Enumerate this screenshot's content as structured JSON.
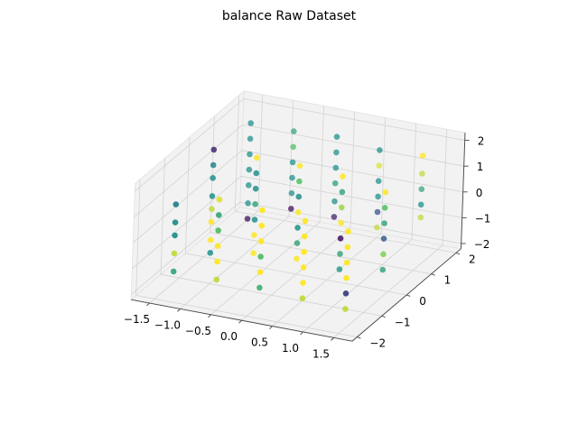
{
  "chart_data": {
    "type": "scatter",
    "title": "balance Raw Dataset",
    "xlabel": "",
    "ylabel": "",
    "zlabel": "",
    "xlim": [
      -1.8,
      1.8
    ],
    "ylim": [
      -2.2,
      2.2
    ],
    "zlim": [
      -2.2,
      2.3
    ],
    "x_ticks": [
      -1.5,
      -1.0,
      -0.5,
      0.0,
      0.5,
      1.0,
      1.5
    ],
    "x_tick_labels": [
      "−1.5",
      "−1.0",
      "−0.5",
      "0.0",
      "0.5",
      "1.0",
      "1.5"
    ],
    "y_ticks": [
      -2,
      -1,
      0,
      1,
      2
    ],
    "y_tick_labels": [
      "−2",
      "−1",
      "0",
      "1",
      "2"
    ],
    "z_ticks": [
      -2,
      -1,
      0,
      1,
      2
    ],
    "z_tick_labels": [
      "−2",
      "−1",
      "0",
      "1",
      "2"
    ],
    "grid": true,
    "colormap": [
      "#440154",
      "#3b528b",
      "#21918c",
      "#5ec962",
      "#fde725"
    ],
    "pane_color": "#f2f2f2",
    "points": [
      {
        "x": -1.4,
        "y": 0.0,
        "z": 2.0,
        "c": 0.12
      },
      {
        "x": -1.4,
        "y": 0.0,
        "z": 1.4,
        "c": 0.45
      },
      {
        "x": -1.4,
        "y": 0.0,
        "z": 0.9,
        "c": 0.5
      },
      {
        "x": -1.4,
        "y": 0.0,
        "z": 0.2,
        "c": 0.5
      },
      {
        "x": -1.4,
        "y": 0.0,
        "z": -0.3,
        "c": 0.9
      },
      {
        "x": -1.4,
        "y": 0.0,
        "z": -0.8,
        "c": 1.0
      },
      {
        "x": -1.4,
        "y": 0.0,
        "z": -1.5,
        "c": 1.0
      },
      {
        "x": -1.4,
        "y": 0.0,
        "z": -2.0,
        "c": 0.5
      },
      {
        "x": -1.4,
        "y": 1.5,
        "z": 1.8,
        "c": 0.5
      },
      {
        "x": -1.4,
        "y": 1.5,
        "z": 1.2,
        "c": 0.5
      },
      {
        "x": -1.4,
        "y": 1.5,
        "z": 0.6,
        "c": 0.5
      },
      {
        "x": -1.4,
        "y": 1.5,
        "z": 0.0,
        "c": 0.5
      },
      {
        "x": -1.4,
        "y": 1.5,
        "z": -0.6,
        "c": 0.5
      },
      {
        "x": -1.4,
        "y": 1.5,
        "z": -1.3,
        "c": 0.5
      },
      {
        "x": -1.4,
        "y": 1.5,
        "z": -1.9,
        "c": 0.05
      },
      {
        "x": -1.4,
        "y": -1.5,
        "z": 1.1,
        "c": 0.45
      },
      {
        "x": -1.4,
        "y": -1.5,
        "z": 0.4,
        "c": 0.5
      },
      {
        "x": -1.4,
        "y": -1.5,
        "z": -0.1,
        "c": 0.5
      },
      {
        "x": -1.4,
        "y": -1.5,
        "z": -0.8,
        "c": 0.9
      },
      {
        "x": -1.4,
        "y": -1.5,
        "z": -1.5,
        "c": 0.6
      },
      {
        "x": -0.7,
        "y": 1.5,
        "z": 1.8,
        "c": 0.6
      },
      {
        "x": -0.7,
        "y": 1.5,
        "z": 1.2,
        "c": 0.7
      },
      {
        "x": -0.7,
        "y": 1.5,
        "z": 0.6,
        "c": 0.5
      },
      {
        "x": -0.7,
        "y": 1.5,
        "z": 0.0,
        "c": 0.5
      },
      {
        "x": -0.7,
        "y": 1.5,
        "z": -0.6,
        "c": 0.5
      },
      {
        "x": -0.7,
        "y": 1.5,
        "z": -1.2,
        "c": 0.05
      },
      {
        "x": -0.7,
        "y": 0.0,
        "z": 2.0,
        "c": 1.0
      },
      {
        "x": -0.7,
        "y": 0.0,
        "z": 1.4,
        "c": 0.5
      },
      {
        "x": -0.7,
        "y": 0.0,
        "z": 0.8,
        "c": 0.5
      },
      {
        "x": -0.7,
        "y": 0.0,
        "z": 0.2,
        "c": 0.6
      },
      {
        "x": -0.7,
        "y": 0.0,
        "z": -0.4,
        "c": 0.5
      },
      {
        "x": -0.7,
        "y": 0.0,
        "z": -1.0,
        "c": 1.0
      },
      {
        "x": -0.7,
        "y": 0.0,
        "z": -1.7,
        "c": 1.0
      },
      {
        "x": -0.7,
        "y": -1.5,
        "z": 1.6,
        "c": 0.95
      },
      {
        "x": -0.7,
        "y": -1.5,
        "z": 1.0,
        "c": 0.6
      },
      {
        "x": -0.7,
        "y": -1.5,
        "z": 0.4,
        "c": 0.7
      },
      {
        "x": -0.7,
        "y": -1.5,
        "z": -0.2,
        "c": 1.0
      },
      {
        "x": -0.7,
        "y": -1.5,
        "z": -0.8,
        "c": 1.0
      },
      {
        "x": -0.7,
        "y": -1.5,
        "z": -1.5,
        "c": 0.9
      },
      {
        "x": 0.0,
        "y": 1.5,
        "z": 1.9,
        "c": 0.5
      },
      {
        "x": 0.0,
        "y": 1.5,
        "z": 1.3,
        "c": 0.5
      },
      {
        "x": 0.0,
        "y": 1.5,
        "z": 0.7,
        "c": 0.5
      },
      {
        "x": 0.0,
        "y": 1.5,
        "z": 0.1,
        "c": 0.55
      },
      {
        "x": 0.0,
        "y": 1.5,
        "z": -0.6,
        "c": 0.5
      },
      {
        "x": 0.0,
        "y": 1.5,
        "z": -1.2,
        "c": 0.1
      },
      {
        "x": 0.0,
        "y": 0.0,
        "z": 2.0,
        "c": 1.0
      },
      {
        "x": 0.0,
        "y": 0.0,
        "z": 1.4,
        "c": 0.7
      },
      {
        "x": 0.0,
        "y": 0.0,
        "z": 0.8,
        "c": 0.5
      },
      {
        "x": 0.0,
        "y": 0.0,
        "z": 0.2,
        "c": 1.0
      },
      {
        "x": 0.0,
        "y": 0.0,
        "z": -0.4,
        "c": 0.5
      },
      {
        "x": 0.0,
        "y": 0.0,
        "z": -1.0,
        "c": 0.6
      },
      {
        "x": 0.0,
        "y": 0.0,
        "z": -1.6,
        "c": 1.0
      },
      {
        "x": 0.0,
        "y": -1.5,
        "z": 1.5,
        "c": 1.0
      },
      {
        "x": 0.0,
        "y": -1.5,
        "z": 0.9,
        "c": 1.0
      },
      {
        "x": 0.0,
        "y": -1.5,
        "z": 0.3,
        "c": 1.0
      },
      {
        "x": 0.0,
        "y": -1.5,
        "z": -0.3,
        "c": 0.7
      },
      {
        "x": 0.0,
        "y": -1.5,
        "z": -0.9,
        "c": 1.0
      },
      {
        "x": 0.0,
        "y": -1.5,
        "z": -1.5,
        "c": 0.65
      },
      {
        "x": 0.7,
        "y": 1.5,
        "z": 1.7,
        "c": 0.5
      },
      {
        "x": 0.7,
        "y": 1.5,
        "z": 1.1,
        "c": 0.95
      },
      {
        "x": 0.7,
        "y": 1.5,
        "z": 0.5,
        "c": 0.5
      },
      {
        "x": 0.7,
        "y": 1.5,
        "z": -0.1,
        "c": 0.5
      },
      {
        "x": 0.7,
        "y": 1.5,
        "z": -0.7,
        "c": 0.25
      },
      {
        "x": 0.7,
        "y": 1.5,
        "z": -1.3,
        "c": 0.9
      },
      {
        "x": 0.7,
        "y": 0.0,
        "z": 1.9,
        "c": 1.0
      },
      {
        "x": 0.7,
        "y": 0.0,
        "z": 1.3,
        "c": 0.6
      },
      {
        "x": 0.7,
        "y": 0.0,
        "z": 0.7,
        "c": 0.85
      },
      {
        "x": 0.7,
        "y": 0.0,
        "z": 0.1,
        "c": 1.0
      },
      {
        "x": 0.7,
        "y": 0.0,
        "z": -0.5,
        "c": 0.05
      },
      {
        "x": 0.7,
        "y": 0.0,
        "z": -1.1,
        "c": 0.6
      },
      {
        "x": 0.7,
        "y": 0.0,
        "z": -1.7,
        "c": 0.55
      },
      {
        "x": 0.7,
        "y": -1.5,
        "z": 1.4,
        "c": 1.0
      },
      {
        "x": 0.7,
        "y": -1.5,
        "z": 0.8,
        "c": 1.0
      },
      {
        "x": 0.7,
        "y": -1.5,
        "z": 0.2,
        "c": 1.0
      },
      {
        "x": 0.7,
        "y": -1.5,
        "z": -0.4,
        "c": 1.0
      },
      {
        "x": 0.7,
        "y": -1.5,
        "z": -1.0,
        "c": 1.0
      },
      {
        "x": 0.7,
        "y": -1.5,
        "z": -1.6,
        "c": 0.9
      },
      {
        "x": 1.4,
        "y": 1.5,
        "z": 1.8,
        "c": 1.0
      },
      {
        "x": 1.4,
        "y": 1.5,
        "z": 1.1,
        "c": 0.9
      },
      {
        "x": 1.4,
        "y": 1.5,
        "z": 0.5,
        "c": 0.6
      },
      {
        "x": 1.4,
        "y": 1.5,
        "z": -0.1,
        "c": 0.5
      },
      {
        "x": 1.4,
        "y": 1.5,
        "z": -0.6,
        "c": 0.9
      },
      {
        "x": 1.4,
        "y": 0.0,
        "z": 1.6,
        "c": 1.0
      },
      {
        "x": 1.4,
        "y": 0.0,
        "z": 1.0,
        "c": 0.7
      },
      {
        "x": 1.4,
        "y": 0.0,
        "z": 0.4,
        "c": 0.6
      },
      {
        "x": 1.4,
        "y": 0.0,
        "z": -0.2,
        "c": 0.3
      },
      {
        "x": 1.4,
        "y": 0.0,
        "z": -0.8,
        "c": 0.8
      },
      {
        "x": 1.4,
        "y": 0.0,
        "z": -1.4,
        "c": 0.6
      },
      {
        "x": 1.4,
        "y": -1.5,
        "z": 1.3,
        "c": 1.0
      },
      {
        "x": 1.4,
        "y": -1.5,
        "z": 0.7,
        "c": 1.0
      },
      {
        "x": 1.4,
        "y": -1.5,
        "z": 0.1,
        "c": 1.0
      },
      {
        "x": 1.4,
        "y": -1.5,
        "z": -0.5,
        "c": 1.0
      },
      {
        "x": 1.4,
        "y": -1.5,
        "z": -1.1,
        "c": 0.2
      },
      {
        "x": 1.4,
        "y": -1.5,
        "z": -1.7,
        "c": 0.9
      }
    ]
  }
}
